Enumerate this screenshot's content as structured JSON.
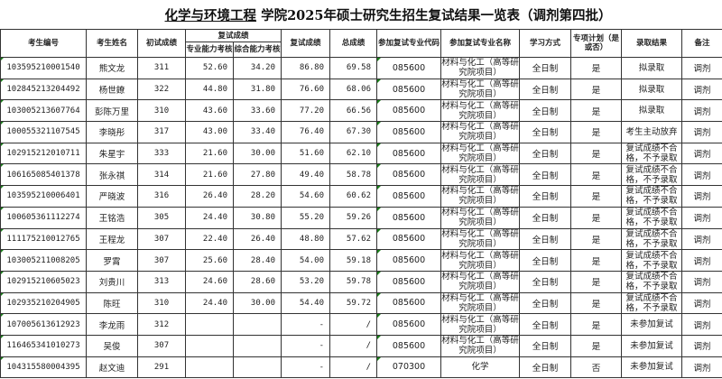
{
  "title": {
    "college": "化学与环境工程",
    "rest": "学院2025年硕士研究生招生复试结果一览表（调剂第四批）"
  },
  "headers": {
    "id": "考生编号",
    "name": "考生姓名",
    "initial": "初试成绩",
    "retest_group": "复试成绩",
    "prof": "专业能力考核",
    "comp": "综合能力考核",
    "retest": "复试成绩",
    "total": "总成绩",
    "code": "参加复试专业代码",
    "major": "参加复试专业名称",
    "mode": "学习方式",
    "special": "专项计划（是或否）",
    "result": "录取结果",
    "note": "备注"
  },
  "rows": [
    {
      "id": "103595210001540",
      "name": "熊文龙",
      "initial": "311",
      "prof": "52.60",
      "comp": "34.20",
      "retest": "86.80",
      "total": "69.58",
      "code": "085600",
      "major": "材料与化工（高等研究院项目）",
      "mode": "全日制",
      "special": "是",
      "result": "拟录取",
      "note": "调剂"
    },
    {
      "id": "102845213204492",
      "name": "杨世鐐",
      "initial": "322",
      "prof": "44.80",
      "comp": "31.80",
      "retest": "76.60",
      "total": "68.06",
      "code": "085600",
      "major": "材料与化工（高等研究院项目）",
      "mode": "全日制",
      "special": "是",
      "result": "拟录取",
      "note": "调剂"
    },
    {
      "id": "103005213607764",
      "name": "彭陈万里",
      "initial": "310",
      "prof": "43.60",
      "comp": "33.60",
      "retest": "77.20",
      "total": "66.56",
      "code": "085600",
      "major": "材料与化工（高等研究院项目）",
      "mode": "全日制",
      "special": "是",
      "result": "拟录取",
      "note": "调剂"
    },
    {
      "id": "100055321107545",
      "name": "李晓彤",
      "initial": "317",
      "prof": "43.00",
      "comp": "33.40",
      "retest": "76.40",
      "total": "67.30",
      "code": "085600",
      "major": "材料与化工（高等研究院项目）",
      "mode": "全日制",
      "special": "是",
      "result": "考生主动放弃",
      "note": "调剂"
    },
    {
      "id": "102915212010711",
      "name": "朱星宇",
      "initial": "333",
      "prof": "21.60",
      "comp": "30.00",
      "retest": "51.60",
      "total": "62.10",
      "code": "085600",
      "major": "材料与化工（高等研究院项目）",
      "mode": "全日制",
      "special": "是",
      "result": "复试成绩不合格，不予录取",
      "note": "调剂"
    },
    {
      "id": "106165085401378",
      "name": "张永祺",
      "initial": "314",
      "prof": "21.60",
      "comp": "27.80",
      "retest": "49.40",
      "total": "58.78",
      "code": "085600",
      "major": "材料与化工（高等研究院项目）",
      "mode": "全日制",
      "special": "是",
      "result": "复试成绩不合格，不予录取",
      "note": "调剂"
    },
    {
      "id": "103595210006401",
      "name": "严晓波",
      "initial": "316",
      "prof": "26.40",
      "comp": "28.20",
      "retest": "54.60",
      "total": "60.62",
      "code": "085600",
      "major": "材料与化工（高等研究院项目）",
      "mode": "全日制",
      "special": "是",
      "result": "复试成绩不合格，不予录取",
      "note": "调剂"
    },
    {
      "id": "100605361112274",
      "name": "王铭浩",
      "initial": "305",
      "prof": "24.40",
      "comp": "30.80",
      "retest": "55.20",
      "total": "59.26",
      "code": "085600",
      "major": "材料与化工（高等研究院项目）",
      "mode": "全日制",
      "special": "是",
      "result": "复试成绩不合格，不予录取",
      "note": "调剂"
    },
    {
      "id": "111175210012765",
      "name": "王程龙",
      "initial": "307",
      "prof": "22.40",
      "comp": "26.40",
      "retest": "48.80",
      "total": "57.62",
      "code": "085600",
      "major": "材料与化工（高等研究院项目）",
      "mode": "全日制",
      "special": "是",
      "result": "复试成绩不合格，不予录取",
      "note": "调剂"
    },
    {
      "id": "103005211008205",
      "name": "罗霄",
      "initial": "307",
      "prof": "25.60",
      "comp": "28.40",
      "retest": "54.00",
      "total": "59.18",
      "code": "085600",
      "major": "材料与化工（高等研究院项目）",
      "mode": "全日制",
      "special": "是",
      "result": "复试成绩不合格，不予录取",
      "note": "调剂"
    },
    {
      "id": "102915210605023",
      "name": "刘贵川",
      "initial": "313",
      "prof": "24.60",
      "comp": "28.60",
      "retest": "53.20",
      "total": "59.78",
      "code": "085600",
      "major": "材料与化工（高等研究院项目）",
      "mode": "全日制",
      "special": "是",
      "result": "复试成绩不合格，不予录取",
      "note": "调剂"
    },
    {
      "id": "102935210204905",
      "name": "陈旺",
      "initial": "310",
      "prof": "24.40",
      "comp": "30.00",
      "retest": "54.40",
      "total": "59.72",
      "code": "085600",
      "major": "材料与化工（高等研究院项目）",
      "mode": "全日制",
      "special": "是",
      "result": "复试成绩不合格，不予录取",
      "note": "调剂"
    },
    {
      "id": "107005613612923",
      "name": "李龙雨",
      "initial": "312",
      "prof": "",
      "comp": "",
      "retest": "-",
      "total": "/",
      "code": "085600",
      "major": "材料与化工（高等研究院项目）",
      "mode": "全日制",
      "special": "是",
      "result": "未参加复试",
      "note": "调剂"
    },
    {
      "id": "116465341010273",
      "name": "吴俊",
      "initial": "307",
      "prof": "",
      "comp": "",
      "retest": "-",
      "total": "/",
      "code": "085600",
      "major": "材料与化工（高等研究院项目）",
      "mode": "全日制",
      "special": "是",
      "result": "未参加复试",
      "note": "调剂"
    },
    {
      "id": "104315580004395",
      "name": "赵文迪",
      "initial": "291",
      "prof": "",
      "comp": "",
      "retest": "-",
      "total": "/",
      "code": "070300",
      "major": "化学",
      "mode": "全日制",
      "special": "否",
      "result": "未参加复试",
      "note": "调剂"
    }
  ]
}
